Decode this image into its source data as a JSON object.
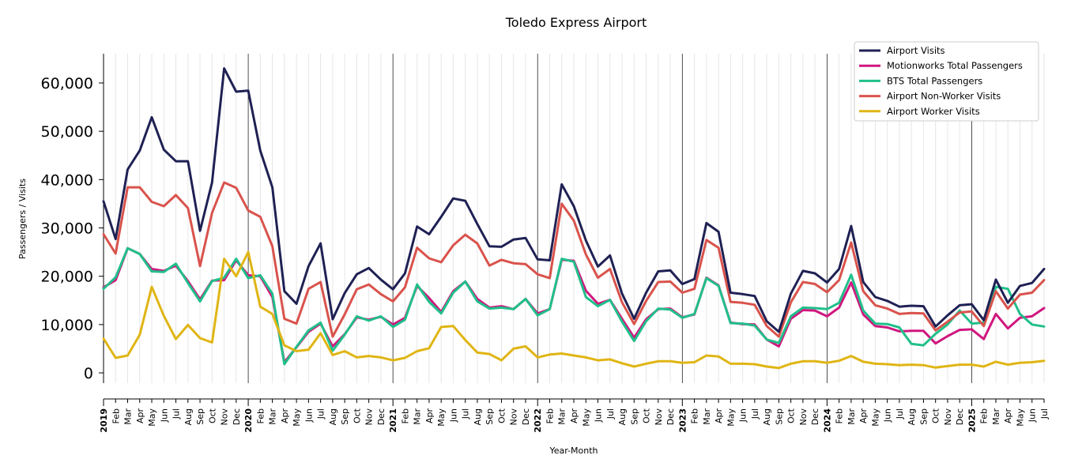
{
  "chart_data": {
    "type": "line",
    "title": "Toledo Express Airport",
    "xlabel": "Year-Month",
    "ylabel": "Passengers / Visits",
    "ylim": [
      -2000,
      66000
    ],
    "yticks": [
      0,
      10000,
      20000,
      30000,
      40000,
      50000,
      60000
    ],
    "ytick_labels": [
      "0",
      "10,000",
      "20,000",
      "30,000",
      "40,000",
      "50,000",
      "60,000"
    ],
    "x_labels": [
      "2019",
      "Feb",
      "Mar",
      "Apr",
      "May",
      "Jun",
      "Jul",
      "Aug",
      "Sep",
      "Oct",
      "Nov",
      "Dec",
      "2020",
      "Feb",
      "Mar",
      "Apr",
      "May",
      "Jun",
      "Jul",
      "Aug",
      "Sep",
      "Oct",
      "Nov",
      "Dec",
      "2021",
      "Feb",
      "Mar",
      "Apr",
      "May",
      "Jun",
      "Jul",
      "Aug",
      "Sep",
      "Oct",
      "Nov",
      "Dec",
      "2022",
      "Feb",
      "Mar",
      "Apr",
      "May",
      "Jun",
      "Jul",
      "Aug",
      "Sep",
      "Oct",
      "Nov",
      "Dec",
      "2023",
      "Feb",
      "Mar",
      "Apr",
      "May",
      "Jun",
      "Jul",
      "Aug",
      "Sep",
      "Oct",
      "Nov",
      "Dec",
      "2024",
      "Feb",
      "Mar",
      "Apr",
      "May",
      "Jun",
      "Jul",
      "Aug",
      "Sep",
      "Oct",
      "Nov",
      "Dec",
      "2025",
      "Feb",
      "Mar",
      "Apr",
      "May",
      "Jun",
      "Jul"
    ],
    "legend_position": "top-right",
    "grid": "vertical monthly lines, darker lines at year boundaries",
    "series": [
      {
        "name": "Airport Visits",
        "color": "#1f2154",
        "values": [
          35500,
          27700,
          42100,
          46000,
          52900,
          46200,
          43800,
          43800,
          29400,
          39400,
          63000,
          58200,
          58400,
          46000,
          38400,
          16900,
          14300,
          22100,
          26800,
          11100,
          16500,
          20400,
          21700,
          19300,
          17300,
          20600,
          30300,
          28700,
          32300,
          36100,
          35600,
          30800,
          26200,
          26100,
          27600,
          27900,
          23500,
          23300,
          39000,
          34500,
          27400,
          22000,
          24300,
          16400,
          11200,
          16600,
          21000,
          21200,
          18400,
          19400,
          31000,
          29200,
          16600,
          16300,
          15900,
          10700,
          8500,
          16400,
          21100,
          20600,
          18700,
          21500,
          30400,
          18800,
          15700,
          14900,
          13700,
          13900,
          13800,
          9600,
          11900,
          14000,
          14200,
          10900,
          19300,
          14500,
          18000,
          18600,
          21500
        ]
      },
      {
        "name": "Motionworks Total Passengers",
        "color": "#d0177f",
        "values": [
          17700,
          19200,
          25800,
          24600,
          21500,
          21100,
          22200,
          19000,
          15200,
          19100,
          19200,
          23300,
          20200,
          20000,
          15700,
          2200,
          5300,
          8500,
          10200,
          5500,
          8000,
          11500,
          11000,
          11600,
          10000,
          11400,
          18000,
          15500,
          12600,
          16900,
          18900,
          15300,
          13500,
          13800,
          13200,
          15300,
          12300,
          13200,
          23400,
          23200,
          17000,
          14300,
          15100,
          11200,
          7300,
          11100,
          13200,
          13300,
          11500,
          12100,
          19700,
          18100,
          10400,
          10100,
          10000,
          6900,
          5500,
          11200,
          13000,
          12900,
          11700,
          13500,
          18700,
          12100,
          9700,
          9400,
          8600,
          8700,
          8700,
          6100,
          7600,
          8900,
          9000,
          7000,
          12200,
          9200,
          11400,
          11700,
          13400
        ]
      },
      {
        "name": "BTS Total Passengers",
        "color": "#21bf8a",
        "values": [
          17400,
          19800,
          25800,
          24600,
          21000,
          20900,
          22600,
          18600,
          14800,
          19000,
          19700,
          23600,
          19600,
          20200,
          16400,
          1800,
          5400,
          8800,
          10400,
          4600,
          7900,
          11700,
          10800,
          11700,
          9500,
          11000,
          18300,
          14700,
          12300,
          16600,
          18900,
          14800,
          13300,
          13500,
          13200,
          15300,
          11900,
          13200,
          23600,
          23000,
          15700,
          13800,
          15100,
          10600,
          6600,
          10700,
          13300,
          13100,
          11400,
          12200,
          19600,
          18000,
          10300,
          10200,
          9800,
          6900,
          6200,
          11700,
          13500,
          13400,
          13200,
          14500,
          20300,
          12900,
          10200,
          10100,
          9400,
          6000,
          5700,
          8100,
          10000,
          12900,
          10200,
          10400,
          17800,
          17400,
          12200,
          10000,
          9600
        ]
      },
      {
        "name": "Airport Non-Worker Visits",
        "color": "#d9534c",
        "values": [
          28700,
          24700,
          38400,
          38400,
          35400,
          34500,
          36800,
          34100,
          22100,
          33100,
          39400,
          38300,
          33600,
          32300,
          26200,
          11200,
          10200,
          17400,
          18800,
          7500,
          12100,
          17300,
          18300,
          16300,
          14800,
          17700,
          25900,
          23700,
          22900,
          26400,
          28600,
          26800,
          22200,
          23400,
          22700,
          22500,
          20400,
          19600,
          35000,
          31500,
          24500,
          19700,
          21500,
          14600,
          10100,
          14900,
          18800,
          18900,
          16600,
          17400,
          27500,
          25900,
          14700,
          14500,
          14100,
          9700,
          7500,
          14600,
          18800,
          18400,
          16700,
          19200,
          27000,
          16900,
          14000,
          13300,
          12200,
          12400,
          12300,
          8800,
          10600,
          12500,
          12700,
          9700,
          16900,
          13300,
          16200,
          16600,
          19200
        ]
      },
      {
        "name": "Airport Worker Visits",
        "color": "#e0b514",
        "values": [
          7100,
          3100,
          3600,
          7900,
          17800,
          11800,
          7000,
          9900,
          7200,
          6300,
          23600,
          20000,
          25000,
          13700,
          12200,
          5700,
          4500,
          4800,
          8200,
          3700,
          4500,
          3200,
          3500,
          3200,
          2600,
          3100,
          4500,
          5100,
          9500,
          9700,
          6800,
          4200,
          3900,
          2600,
          5000,
          5500,
          3200,
          3800,
          4000,
          3600,
          3200,
          2600,
          2800,
          2000,
          1300,
          1900,
          2400,
          2400,
          2100,
          2200,
          3600,
          3400,
          1900,
          1900,
          1800,
          1300,
          1000,
          1900,
          2400,
          2400,
          2100,
          2500,
          3500,
          2300,
          1900,
          1800,
          1600,
          1700,
          1600,
          1100,
          1400,
          1700,
          1700,
          1300,
          2300,
          1700,
          2100,
          2200,
          2500
        ]
      }
    ]
  }
}
